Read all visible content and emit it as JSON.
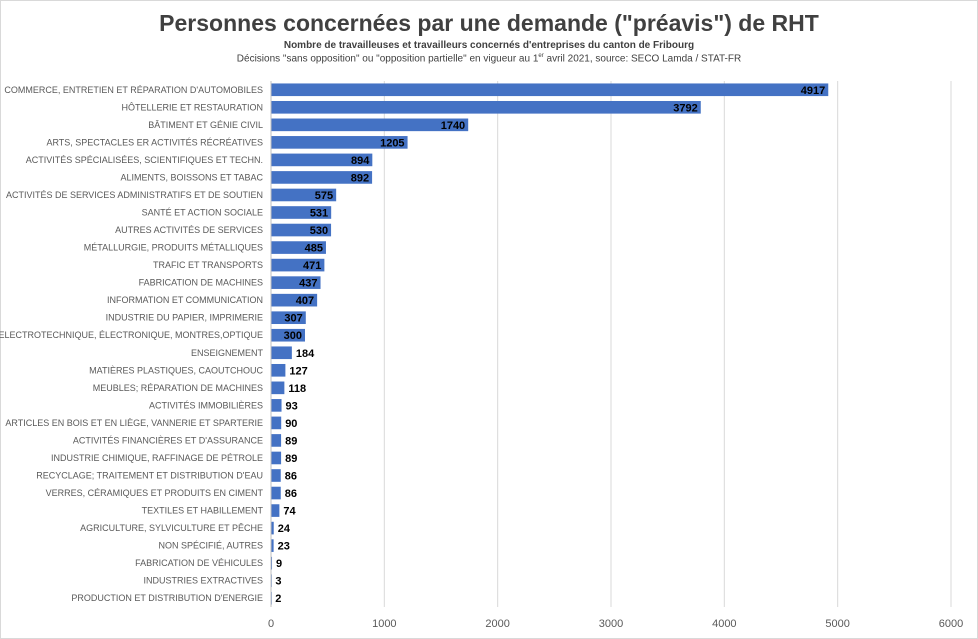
{
  "chart_data": {
    "type": "bar",
    "orientation": "horizontal",
    "title": "Personnes concernées par une demande (\"préavis\") de RHT",
    "subtitle": "Nombre de travailleuses et travailleurs concernés d'entreprises du canton de Fribourg",
    "note_before": "Décisions \"sans opposition\" ou \"opposition partielle\" en vigueur au 1",
    "note_sup": "er",
    "note_after": " avril 2021, source: SECO Lamda / STAT-FR",
    "categories": [
      "COMMERCE, ENTRETIEN ET RÉPARATION D'AUTOMOBILES",
      "HÔTELLERIE ET RESTAURATION",
      "BÂTIMENT ET GÉNIE CIVIL",
      "ARTS, SPECTACLES ER ACTIVITÉS RÉCRÉATIVES",
      "ACTIVITÉS SPÉCIALISÉES, SCIENTIFIQUES ET TECHN.",
      "ALIMENTS, BOISSONS ET TABAC",
      "ACTIVITÉS DE SERVICES ADMINISTRATIFS ET DE SOUTIEN",
      "SANTÉ ET ACTION SOCIALE",
      "AUTRES ACTIVITÉS DE SERVICES",
      "MÉTALLURGIE, PRODUITS MÉTALLIQUES",
      "TRAFIC ET TRANSPORTS",
      "FABRICATION DE MACHINES",
      "INFORMATION ET COMMUNICATION",
      "INDUSTRIE DU PAPIER, IMPRIMERIE",
      "ELECTROTECHNIQUE, ÉLECTRONIQUE, MONTRES,OPTIQUE",
      "ENSEIGNEMENT",
      "MATIÈRES PLASTIQUES, CAOUTCHOUC",
      "MEUBLES; RÉPARATION DE MACHINES",
      "ACTIVITÉS IMMOBILIÈRES",
      "ARTICLES EN BOIS ET EN LIÈGE, VANNERIE ET SPARTERIE",
      "ACTIVITÉS FINANCIÈRES ET D'ASSURANCE",
      "INDUSTRIE CHIMIQUE, RAFFINAGE DE PÉTROLE",
      "RECYCLAGE; TRAITEMENT ET DISTRIBUTION D'EAU",
      "VERRES, CÉRAMIQUES ET PRODUITS EN CIMENT",
      "TEXTILES ET HABILLEMENT",
      "AGRICULTURE, SYLVICULTURE ET PÊCHE",
      "NON SPÉCIFIÉ, AUTRES",
      "FABRICATION DE VÉHICULES",
      "INDUSTRIES EXTRACTIVES",
      "PRODUCTION ET DISTRIBUTION D'ENERGIE"
    ],
    "values": [
      4917,
      3792,
      1740,
      1205,
      894,
      892,
      575,
      531,
      530,
      485,
      471,
      437,
      407,
      307,
      300,
      184,
      127,
      118,
      93,
      90,
      89,
      89,
      86,
      86,
      74,
      24,
      23,
      9,
      3,
      2
    ],
    "xlim": [
      0,
      6000
    ],
    "xticks": [
      "0",
      "1000",
      "2000",
      "3000",
      "4000",
      "5000",
      "6000"
    ],
    "bar_color": "#4472c4",
    "grid": true,
    "legend": "none"
  }
}
